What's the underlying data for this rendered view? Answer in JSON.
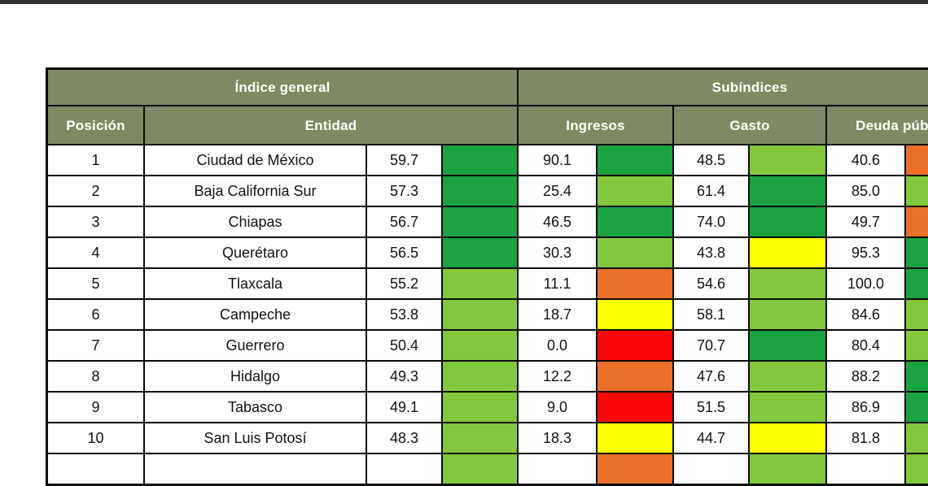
{
  "page": {
    "top_bar_color": "#333333",
    "background_color": "#ffffff"
  },
  "table": {
    "group_headers": {
      "indice_general": "Índice general",
      "subindices": "Subíndices"
    },
    "col_headers": {
      "posicion": "Posición",
      "entidad": "Entidad",
      "ingresos": "Ingresos",
      "gasto": "Gasto",
      "deuda": "Deuda pública"
    },
    "colors": {
      "header_bg": "#7D8A63",
      "dark_green": "#1AA23F",
      "light_green": "#82C83E",
      "yellow": "#FFFF05",
      "orange": "#E8702A",
      "red": "#FB0808",
      "border": "#0a0a0a"
    },
    "rows": [
      {
        "posicion": "1",
        "entidad": "Ciudad de México",
        "indice": "59.7",
        "indice_color": "dark_green",
        "ingresos": "90.1",
        "ingresos_color": "dark_green",
        "gasto": "48.5",
        "gasto_color": "light_green",
        "deuda": "40.6",
        "deuda_color": "orange"
      },
      {
        "posicion": "2",
        "entidad": "Baja California Sur",
        "indice": "57.3",
        "indice_color": "dark_green",
        "ingresos": "25.4",
        "ingresos_color": "light_green",
        "gasto": "61.4",
        "gasto_color": "dark_green",
        "deuda": "85.0",
        "deuda_color": "light_green"
      },
      {
        "posicion": "3",
        "entidad": "Chiapas",
        "indice": "56.7",
        "indice_color": "dark_green",
        "ingresos": "46.5",
        "ingresos_color": "dark_green",
        "gasto": "74.0",
        "gasto_color": "dark_green",
        "deuda": "49.7",
        "deuda_color": "orange"
      },
      {
        "posicion": "4",
        "entidad": "Querétaro",
        "indice": "56.5",
        "indice_color": "dark_green",
        "ingresos": "30.3",
        "ingresos_color": "light_green",
        "gasto": "43.8",
        "gasto_color": "yellow",
        "deuda": "95.3",
        "deuda_color": "dark_green"
      },
      {
        "posicion": "5",
        "entidad": "Tlaxcala",
        "indice": "55.2",
        "indice_color": "light_green",
        "ingresos": "11.1",
        "ingresos_color": "orange",
        "gasto": "54.6",
        "gasto_color": "light_green",
        "deuda": "100.0",
        "deuda_color": "dark_green"
      },
      {
        "posicion": "6",
        "entidad": "Campeche",
        "indice": "53.8",
        "indice_color": "light_green",
        "ingresos": "18.7",
        "ingresos_color": "yellow",
        "gasto": "58.1",
        "gasto_color": "light_green",
        "deuda": "84.6",
        "deuda_color": "light_green"
      },
      {
        "posicion": "7",
        "entidad": "Guerrero",
        "indice": "50.4",
        "indice_color": "light_green",
        "ingresos": "0.0",
        "ingresos_color": "red",
        "gasto": "70.7",
        "gasto_color": "dark_green",
        "deuda": "80.4",
        "deuda_color": "light_green"
      },
      {
        "posicion": "8",
        "entidad": "Hidalgo",
        "indice": "49.3",
        "indice_color": "light_green",
        "ingresos": "12.2",
        "ingresos_color": "orange",
        "gasto": "47.6",
        "gasto_color": "light_green",
        "deuda": "88.2",
        "deuda_color": "dark_green"
      },
      {
        "posicion": "9",
        "entidad": "Tabasco",
        "indice": "49.1",
        "indice_color": "light_green",
        "ingresos": "9.0",
        "ingresos_color": "red",
        "gasto": "51.5",
        "gasto_color": "light_green",
        "deuda": "86.9",
        "deuda_color": "dark_green"
      },
      {
        "posicion": "10",
        "entidad": "San Luis Potosí",
        "indice": "48.3",
        "indice_color": "light_green",
        "ingresos": "18.3",
        "ingresos_color": "yellow",
        "gasto": "44.7",
        "gasto_color": "yellow",
        "deuda": "81.8",
        "deuda_color": "light_green"
      },
      {
        "posicion": "",
        "entidad": "",
        "indice": "",
        "indice_color": "light_green",
        "ingresos": "",
        "ingresos_color": "orange",
        "gasto": "",
        "gasto_color": "light_green",
        "deuda": "",
        "deuda_color": "light_green",
        "partial": true
      }
    ]
  },
  "chart_data": {
    "type": "table",
    "title": "Índice general / Subíndices",
    "columns": [
      "Posición",
      "Entidad",
      "Índice general",
      "Ingresos",
      "Gasto",
      "Deuda pública"
    ],
    "rows": [
      [
        1,
        "Ciudad de México",
        59.7,
        90.1,
        48.5,
        40.6
      ],
      [
        2,
        "Baja California Sur",
        57.3,
        25.4,
        61.4,
        85.0
      ],
      [
        3,
        "Chiapas",
        56.7,
        46.5,
        74.0,
        49.7
      ],
      [
        4,
        "Querétaro",
        56.5,
        30.3,
        43.8,
        95.3
      ],
      [
        5,
        "Tlaxcala",
        55.2,
        11.1,
        54.6,
        100.0
      ],
      [
        6,
        "Campeche",
        53.8,
        18.7,
        58.1,
        84.6
      ],
      [
        7,
        "Guerrero",
        50.4,
        0.0,
        70.7,
        80.4
      ],
      [
        8,
        "Hidalgo",
        49.3,
        12.2,
        47.6,
        88.2
      ],
      [
        9,
        "Tabasco",
        49.1,
        9.0,
        51.5,
        86.9
      ],
      [
        10,
        "San Luis Potosí",
        48.3,
        18.3,
        44.7,
        81.8
      ]
    ],
    "notes": "Each numeric value is paired with a color-coded cell: dark green (high), light green, yellow, orange, red (low). Table is cropped at right edge (Deuda pública color column) and bottom (row 11 partially visible)."
  }
}
